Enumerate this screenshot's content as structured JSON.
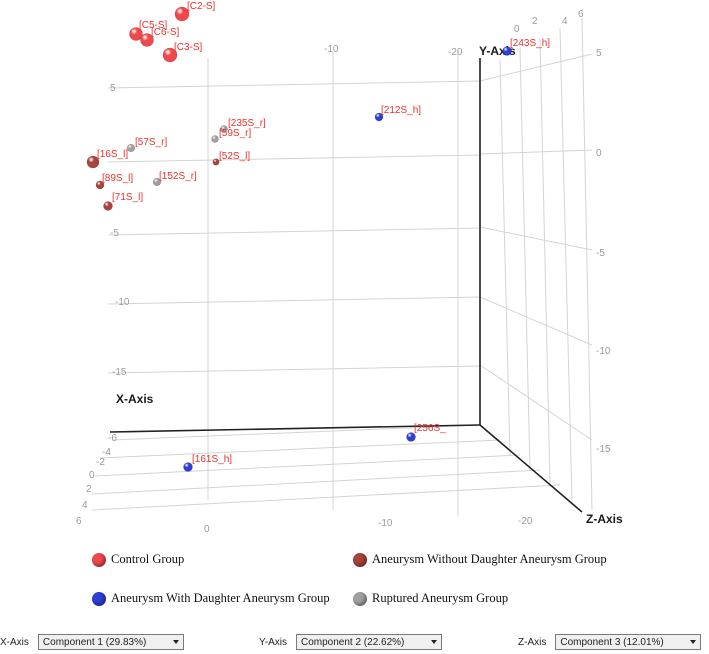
{
  "chart_data": {
    "type": "scatter",
    "title": "",
    "axes": {
      "x": {
        "name": "X-Axis",
        "ticks": [
          "6",
          "4",
          "2",
          "0",
          "-2",
          "-4",
          "-6"
        ]
      },
      "y": {
        "name": "Y-Axis",
        "ticks": [
          "5",
          "0",
          "-5",
          "-10",
          "-15"
        ]
      },
      "z": {
        "name": "Z-Axis",
        "ticks": [
          "0",
          "-10",
          "-20"
        ]
      },
      "back_y_ticks": [
        "5",
        "0",
        "-5",
        "-10",
        "-15"
      ],
      "top_ticks": [
        "-10",
        "-20",
        "0",
        "2",
        "4",
        "6"
      ]
    },
    "groups": [
      {
        "name": "Control Group",
        "color": "#f0484b"
      },
      {
        "name": "Aneurysm Without Daughter Aneurysm Group",
        "color": "#a8423a"
      },
      {
        "name": "Aneurysm With Daughter Aneurysm Group",
        "color": "#2f3fd6"
      },
      {
        "name": "Ruptured Aneurysm Group",
        "color": "#a0a0a0"
      }
    ],
    "points": [
      {
        "label": "[C2-S]",
        "group": 0
      },
      {
        "label": "[C5-S]",
        "group": 0
      },
      {
        "label": "[C6-S]",
        "group": 0
      },
      {
        "label": "[C3-S]",
        "group": 0
      },
      {
        "label": "[243S_h]",
        "group": 2
      },
      {
        "label": "[212S_h]",
        "group": 2
      },
      {
        "label": "[235S_r]",
        "group": 3
      },
      {
        "label": "[59S_r]",
        "group": 3
      },
      {
        "label": "[57S_r]",
        "group": 3
      },
      {
        "label": "[16S_l]",
        "group": 1
      },
      {
        "label": "[52S_l]",
        "group": 1
      },
      {
        "label": "[89S_l]",
        "group": 1
      },
      {
        "label": "[152S_r]",
        "group": 3
      },
      {
        "label": "[71S_l]",
        "group": 1
      },
      {
        "label": "[256S_",
        "group": 2
      },
      {
        "label": "[161S_h]",
        "group": 2
      }
    ]
  },
  "controls": [
    {
      "caption": "X-Axis",
      "value": "Component 1 (29.83%)"
    },
    {
      "caption": "Y-Axis",
      "value": "Component 2 (22.62%)"
    },
    {
      "caption": "Z-Axis",
      "value": "Component 3 (12.01%)"
    }
  ]
}
